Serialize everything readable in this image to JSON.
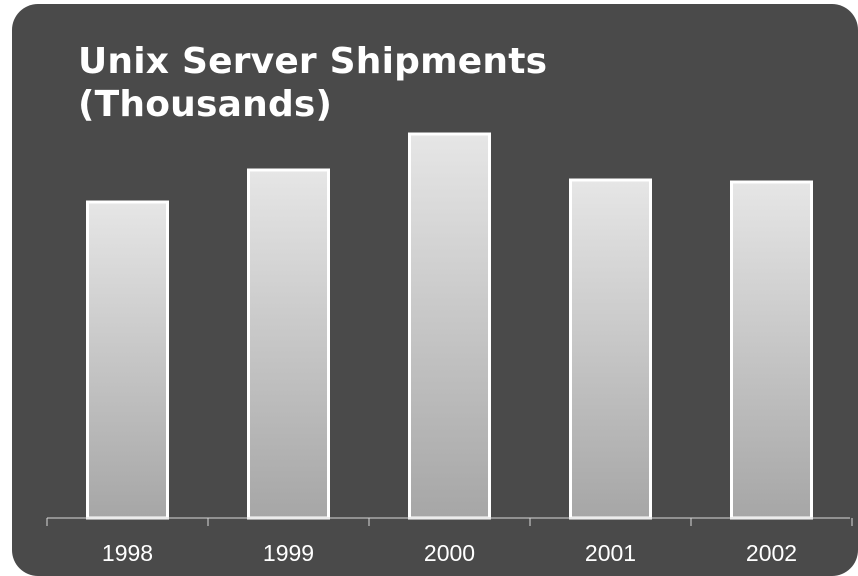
{
  "title_lines": [
    "Unix Server Shipments",
    "(Thousands)"
  ],
  "colors": {
    "background": "#4a4a4a",
    "bar_top": "#e6e6e6",
    "bar_bottom": "#a6a6a6",
    "bar_border": "#ffffff",
    "text": "#ffffff"
  },
  "chart_data": {
    "type": "bar",
    "title": "Unix Server Shipments (Thousands)",
    "categories": [
      "1998",
      "1999",
      "2000",
      "2001",
      "2002"
    ],
    "values": [
      158,
      174,
      192,
      169,
      168
    ],
    "xlabel": "",
    "ylabel": "",
    "ylim": [
      0,
      200
    ],
    "grid": false,
    "legend": "none"
  }
}
